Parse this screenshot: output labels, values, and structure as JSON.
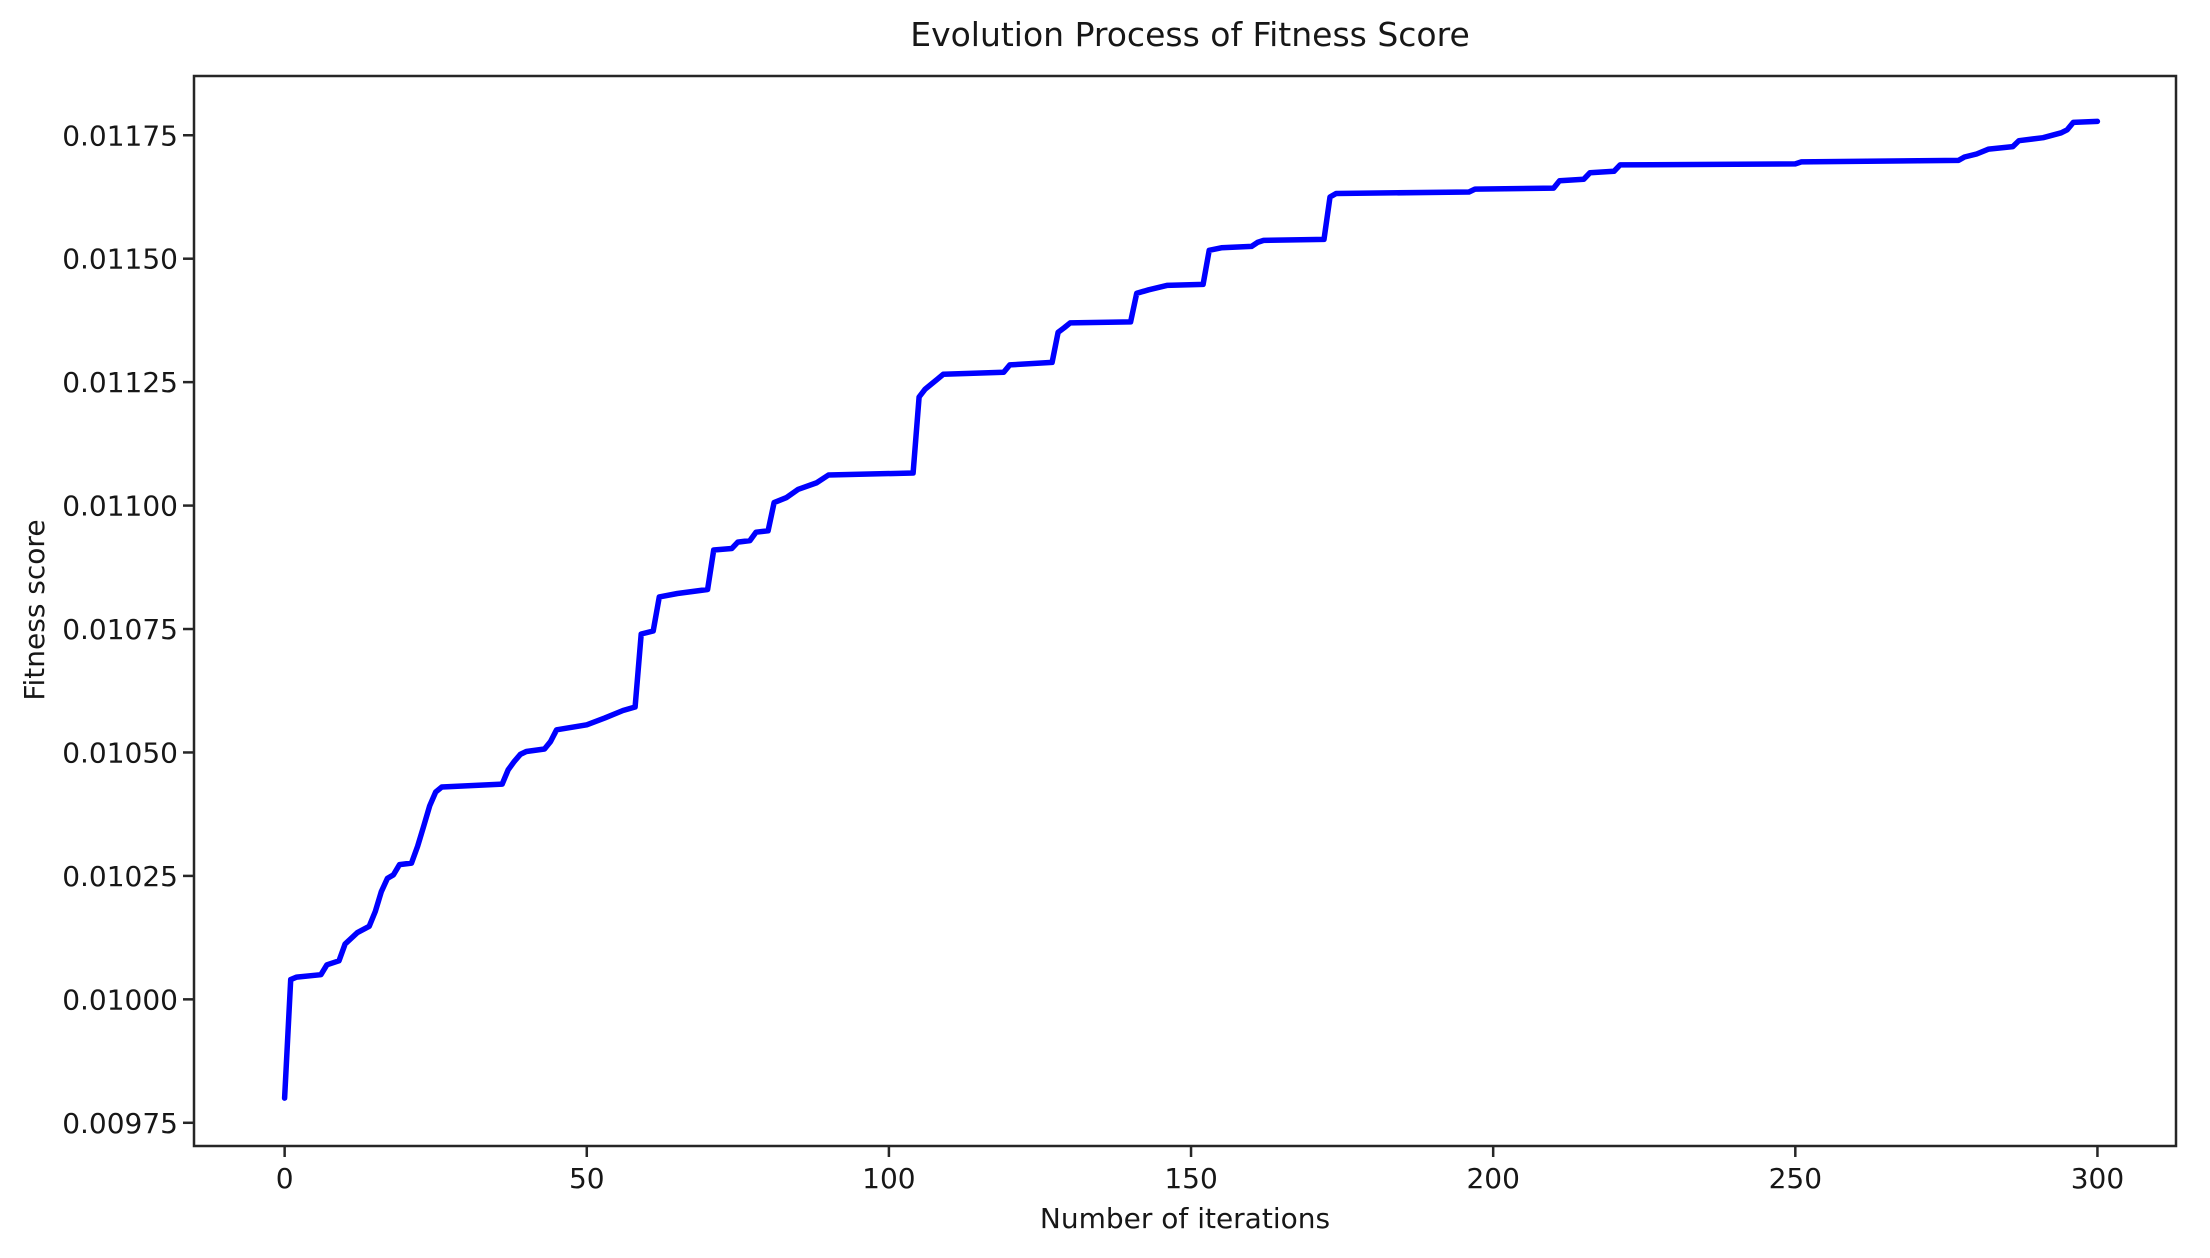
{
  "figure": {
    "background": "#ffffff"
  },
  "chart_data": {
    "type": "line",
    "title": "Evolution Process of Fitness Score",
    "xlabel": "Number of iterations",
    "ylabel": "Fitness score",
    "grid": false,
    "legend": "none",
    "xlim": [
      -15,
      313
    ],
    "ylim": [
      0.009703,
      0.01187
    ],
    "xticks": {
      "values": [
        0,
        50,
        100,
        150,
        200,
        250,
        300
      ],
      "labels": [
        "0",
        "50",
        "100",
        "150",
        "200",
        "250",
        "300"
      ]
    },
    "yticks": {
      "values": [
        0.00975,
        0.01,
        0.01025,
        0.0105,
        0.01075,
        0.011,
        0.01125,
        0.0115,
        0.01175
      ],
      "labels": [
        "0.00975",
        "0.01000",
        "0.01025",
        "0.01050",
        "0.01075",
        "0.01100",
        "0.01125",
        "0.01150",
        "0.01175"
      ]
    },
    "series": [
      {
        "color": "#0000ff",
        "line_width": 5.5,
        "points": [
          [
            0,
            0.0098
          ],
          [
            1,
            0.01004
          ],
          [
            2,
            0.010045
          ],
          [
            6,
            0.01005
          ],
          [
            7,
            0.01007
          ],
          [
            9,
            0.010078
          ],
          [
            10,
            0.010112
          ],
          [
            12,
            0.010135
          ],
          [
            14,
            0.010148
          ],
          [
            15,
            0.010178
          ],
          [
            16,
            0.010218
          ],
          [
            17,
            0.010245
          ],
          [
            18,
            0.010252
          ],
          [
            19,
            0.010273
          ],
          [
            21,
            0.010276
          ],
          [
            22,
            0.01031
          ],
          [
            23,
            0.01035
          ],
          [
            24,
            0.010392
          ],
          [
            25,
            0.01042
          ],
          [
            26,
            0.01043
          ],
          [
            36,
            0.010436
          ],
          [
            37,
            0.010465
          ],
          [
            38,
            0.010482
          ],
          [
            39,
            0.010496
          ],
          [
            40,
            0.010502
          ],
          [
            43,
            0.010507
          ],
          [
            44,
            0.010522
          ],
          [
            45,
            0.010546
          ],
          [
            50,
            0.010556
          ],
          [
            53,
            0.01057
          ],
          [
            56,
            0.010585
          ],
          [
            58,
            0.010592
          ],
          [
            59,
            0.01074
          ],
          [
            61,
            0.010746
          ],
          [
            62,
            0.010815
          ],
          [
            65,
            0.010822
          ],
          [
            70,
            0.01083
          ],
          [
            71,
            0.01091
          ],
          [
            74,
            0.010913
          ],
          [
            75,
            0.010926
          ],
          [
            77,
            0.010929
          ],
          [
            78,
            0.010946
          ],
          [
            80,
            0.010949
          ],
          [
            81,
            0.011006
          ],
          [
            83,
            0.011016
          ],
          [
            85,
            0.011033
          ],
          [
            88,
            0.011046
          ],
          [
            90,
            0.011062
          ],
          [
            104,
            0.011066
          ],
          [
            105,
            0.01122
          ],
          [
            106,
            0.011236
          ],
          [
            108,
            0.011256
          ],
          [
            109,
            0.011266
          ],
          [
            119,
            0.01127
          ],
          [
            120,
            0.011285
          ],
          [
            127,
            0.01129
          ],
          [
            128,
            0.011351
          ],
          [
            129,
            0.01136
          ],
          [
            130,
            0.01137
          ],
          [
            140,
            0.011372
          ],
          [
            141,
            0.01143
          ],
          [
            143,
            0.011437
          ],
          [
            146,
            0.011446
          ],
          [
            152,
            0.011448
          ],
          [
            153,
            0.011517
          ],
          [
            155,
            0.011522
          ],
          [
            160,
            0.011525
          ],
          [
            161,
            0.011533
          ],
          [
            162,
            0.011537
          ],
          [
            172,
            0.011539
          ],
          [
            173,
            0.011625
          ],
          [
            174,
            0.011632
          ],
          [
            196,
            0.011635
          ],
          [
            197,
            0.011641
          ],
          [
            210,
            0.011643
          ],
          [
            211,
            0.011658
          ],
          [
            215,
            0.011661
          ],
          [
            216,
            0.011674
          ],
          [
            220,
            0.011677
          ],
          [
            221,
            0.01169
          ],
          [
            250,
            0.011692
          ],
          [
            251,
            0.011696
          ],
          [
            277,
            0.011699
          ],
          [
            278,
            0.011706
          ],
          [
            280,
            0.011712
          ],
          [
            282,
            0.011722
          ],
          [
            286,
            0.011727
          ],
          [
            287,
            0.011739
          ],
          [
            291,
            0.011745
          ],
          [
            294,
            0.011755
          ],
          [
            295,
            0.011761
          ],
          [
            296,
            0.011776
          ],
          [
            300,
            0.011778
          ]
        ]
      }
    ]
  }
}
